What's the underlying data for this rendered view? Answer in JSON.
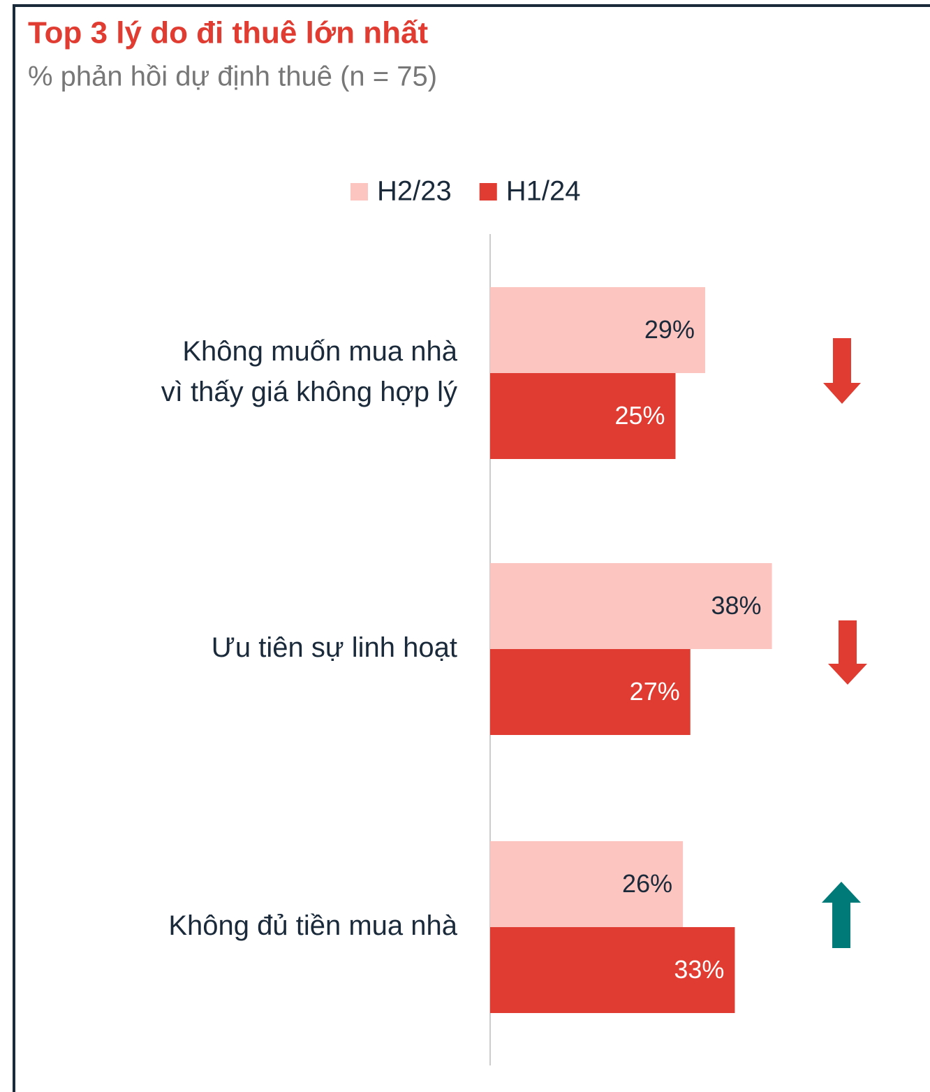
{
  "chart_data": {
    "type": "barh",
    "title": "Top 3 lý do đi thuê lớn nhất",
    "subtitle": "% phản hồi dự định thuê (n = 75)",
    "categories": [
      "Không muốn mua nhà\nvì thấy giá không hợp lý",
      "Ưu tiên sự linh hoạt",
      "Không đủ tiền mua nhà"
    ],
    "series": [
      {
        "name": "H2/23",
        "color": "#fcc5c0",
        "values": [
          29,
          38,
          26
        ],
        "value_labels": [
          "29%",
          "38%",
          "26%"
        ]
      },
      {
        "name": "H1/24",
        "color": "#e03c31",
        "values": [
          25,
          27,
          33
        ],
        "value_labels": [
          "25%",
          "27%",
          "33%"
        ]
      }
    ],
    "xlim": [
      0,
      50
    ]
  }
}
